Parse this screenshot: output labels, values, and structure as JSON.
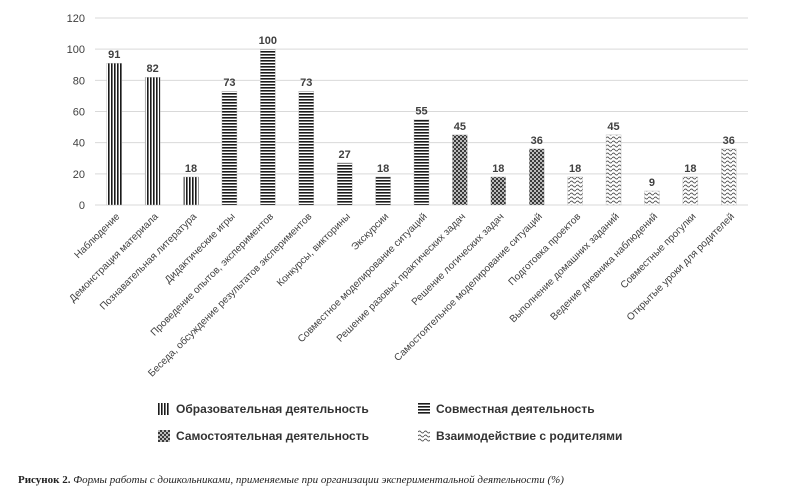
{
  "chart_data": {
    "type": "bar",
    "categories": [
      "Наблюдение",
      "Демонстрация материала",
      "Познавательная литература",
      "Дидактические игры",
      "Проведение опытов, экспериментов",
      "Беседа, обсуждение результатов экспериментов",
      "Конкурсы, викторины",
      "Экскурсии",
      "Совместное моделирование ситуаций",
      "Решение разовых практических задач",
      "Решение логических задач",
      "Самостоятельное моделирование ситуаций",
      "Подготовка проектов",
      "Выполнение домашних заданий",
      "Ведение дневника наблюдений",
      "Совместные прогулки",
      "Открытые уроки для родителей"
    ],
    "values": [
      91,
      82,
      18,
      73,
      100,
      73,
      27,
      18,
      55,
      45,
      18,
      36,
      18,
      45,
      9,
      18,
      36
    ],
    "value_labels": [
      "91",
      "82",
      "18",
      "73",
      "100",
      "73",
      "27",
      "18",
      "55",
      "45",
      "18",
      "36",
      "18",
      "45",
      "9",
      "18",
      "36"
    ],
    "series_groups": [
      1,
      1,
      1,
      2,
      2,
      2,
      2,
      2,
      2,
      3,
      3,
      3,
      4,
      4,
      4,
      4,
      4
    ],
    "series": [
      {
        "name": "Образовательная деятельность",
        "pattern": "vertical"
      },
      {
        "name": "Совместная деятельность",
        "pattern": "horizontal"
      },
      {
        "name": "Самостоятельная деятельность",
        "pattern": "checker"
      },
      {
        "name": "Взаимодействие с родителями",
        "pattern": "wave"
      }
    ],
    "yticks": [
      "0",
      "20",
      "40",
      "60",
      "80",
      "100",
      "120"
    ],
    "ylim": [
      0,
      120
    ],
    "grid": true,
    "legend_position": "bottom",
    "title": "",
    "xlabel": "",
    "ylabel": ""
  },
  "caption": {
    "label": "Рисунок 2.",
    "text": "Формы работы с дошкольниками, применяемые при организации экспериментальной деятельности (%)"
  },
  "colors": {
    "bar": "#1a1a1a",
    "grid": "#d9d9d9",
    "text": "#404040"
  }
}
